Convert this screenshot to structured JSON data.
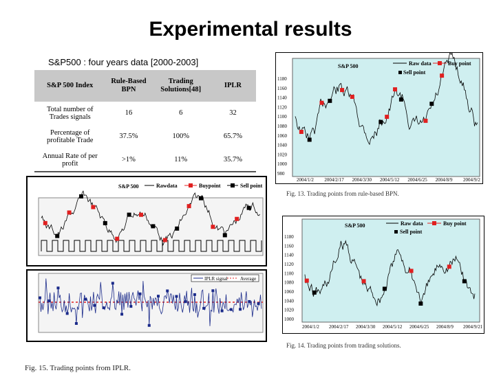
{
  "slide": {
    "title": "Experimental results",
    "subtitle": "S&P500 : four years data [2000-2003]"
  },
  "table": {
    "headers": [
      "S&P 500 Index",
      "Rule-Based BPN",
      "Trading Solutions[48]",
      "IPLR"
    ],
    "rows": [
      {
        "label": "Total number of Trades signals",
        "values": [
          "16",
          "6",
          "32"
        ]
      },
      {
        "label": "Percentage of profitable Trade",
        "values": [
          "37.5%",
          "100%",
          "65.7%"
        ]
      },
      {
        "label": "Annual Rate of per profit",
        "values": [
          ">1%",
          "11%",
          "35.7%"
        ]
      }
    ]
  },
  "figures": {
    "fig13": {
      "caption": "Fig. 13.  Trading points from rule-based BPN.",
      "title": "S&P 500",
      "legend": [
        "Raw data",
        "Buy point",
        "Sell point"
      ],
      "y_ticks": [
        "1180",
        "1160",
        "1140",
        "1120",
        "1100",
        "1080",
        "1060",
        "1040",
        "1020",
        "1000",
        "980"
      ],
      "x_ticks": [
        "2004/1/2",
        "2004/2/17",
        "2004/3/30",
        "2004/5/12",
        "2004/6/25",
        "2004/8/9",
        "2004/9/2"
      ]
    },
    "fig14": {
      "caption": "Fig. 14.  Trading points from trading solutions.",
      "title": "S&P 500",
      "legend": [
        "Raw data",
        "Buy point",
        "Sell point"
      ],
      "y_ticks": [
        "1180",
        "1160",
        "1140",
        "1120",
        "1100",
        "1080",
        "1060",
        "1040",
        "1020",
        "1000"
      ],
      "x_ticks": [
        "2004/1/2",
        "2004/2/17",
        "2004/3/30",
        "2004/5/12",
        "2004/6/25",
        "2004/8/9",
        "2004/9/21"
      ]
    },
    "fig15": {
      "caption": "Fig. 15.  Trading points from IPLR.",
      "title": "S&P 500",
      "legend": [
        "Rawdata",
        "Buypoint",
        "Sell point"
      ],
      "lower_legend": [
        "IPLR signal",
        "Average"
      ]
    }
  },
  "colors": {
    "buy": "#e02020",
    "sell": "#000000",
    "chart_bg": "#cfeff0",
    "signal": "#1a2a8a",
    "average": "#e02020"
  }
}
